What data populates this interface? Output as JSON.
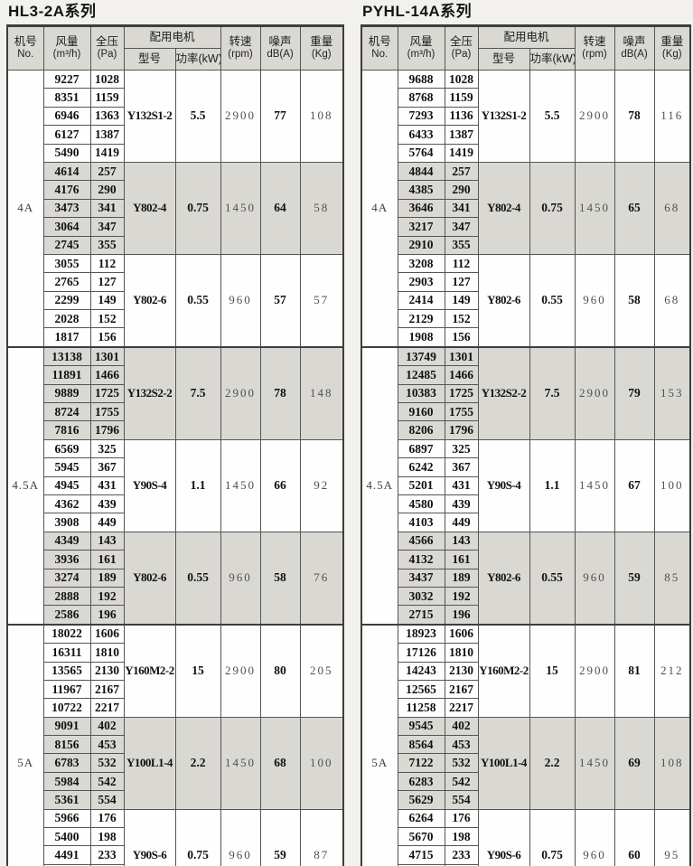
{
  "colors": {
    "page_background": "#f2f1ed",
    "row_shade": "#d9d8d3",
    "header_shade": "#d9d8d3",
    "border": "#555555",
    "cell_white": "#fefefe"
  },
  "header": {
    "machine_no": "机号",
    "machine_no_sub": "No.",
    "airflow": "风量",
    "airflow_sub": "(m³/h)",
    "pressure": "全压",
    "pressure_sub": "(Pa)",
    "motor": "配用电机",
    "motor_model": "型号",
    "motor_power": "功率(kW)",
    "speed": "转速",
    "speed_sub": "(rpm)",
    "noise": "噪声",
    "noise_sub": "dB(A)",
    "weight": "重量",
    "weight_sub": "(Kg)"
  },
  "tables": [
    {
      "title": "HL3-2A系列",
      "sections": [
        {
          "machine_no": "4A",
          "groups": [
            {
              "shaded": false,
              "motor_model": "Y132S1-2",
              "power": "5.5",
              "speed": "2900",
              "noise": "77",
              "weight": "108",
              "rows": [
                {
                  "airflow": "9227",
                  "pressure": "1028"
                },
                {
                  "airflow": "8351",
                  "pressure": "1159"
                },
                {
                  "airflow": "6946",
                  "pressure": "1363"
                },
                {
                  "airflow": "6127",
                  "pressure": "1387"
                },
                {
                  "airflow": "5490",
                  "pressure": "1419"
                }
              ]
            },
            {
              "shaded": true,
              "motor_model": "Y802-4",
              "power": "0.75",
              "speed": "1450",
              "noise": "64",
              "weight": "58",
              "rows": [
                {
                  "airflow": "4614",
                  "pressure": "257"
                },
                {
                  "airflow": "4176",
                  "pressure": "290"
                },
                {
                  "airflow": "3473",
                  "pressure": "341"
                },
                {
                  "airflow": "3064",
                  "pressure": "347"
                },
                {
                  "airflow": "2745",
                  "pressure": "355"
                }
              ]
            },
            {
              "shaded": false,
              "motor_model": "Y802-6",
              "power": "0.55",
              "speed": "960",
              "noise": "57",
              "weight": "57",
              "rows": [
                {
                  "airflow": "3055",
                  "pressure": "112"
                },
                {
                  "airflow": "2765",
                  "pressure": "127"
                },
                {
                  "airflow": "2299",
                  "pressure": "149"
                },
                {
                  "airflow": "2028",
                  "pressure": "152"
                },
                {
                  "airflow": "1817",
                  "pressure": "156"
                }
              ]
            }
          ]
        },
        {
          "machine_no": "4.5A",
          "groups": [
            {
              "shaded": true,
              "motor_model": "Y132S2-2",
              "power": "7.5",
              "speed": "2900",
              "noise": "78",
              "weight": "148",
              "rows": [
                {
                  "airflow": "13138",
                  "pressure": "1301"
                },
                {
                  "airflow": "11891",
                  "pressure": "1466"
                },
                {
                  "airflow": "9889",
                  "pressure": "1725"
                },
                {
                  "airflow": "8724",
                  "pressure": "1755"
                },
                {
                  "airflow": "7816",
                  "pressure": "1796"
                }
              ]
            },
            {
              "shaded": false,
              "motor_model": "Y90S-4",
              "power": "1.1",
              "speed": "1450",
              "noise": "66",
              "weight": "92",
              "rows": [
                {
                  "airflow": "6569",
                  "pressure": "325"
                },
                {
                  "airflow": "5945",
                  "pressure": "367"
                },
                {
                  "airflow": "4945",
                  "pressure": "431"
                },
                {
                  "airflow": "4362",
                  "pressure": "439"
                },
                {
                  "airflow": "3908",
                  "pressure": "449"
                }
              ]
            },
            {
              "shaded": true,
              "motor_model": "Y802-6",
              "power": "0.55",
              "speed": "960",
              "noise": "58",
              "weight": "76",
              "rows": [
                {
                  "airflow": "4349",
                  "pressure": "143"
                },
                {
                  "airflow": "3936",
                  "pressure": "161"
                },
                {
                  "airflow": "3274",
                  "pressure": "189"
                },
                {
                  "airflow": "2888",
                  "pressure": "192"
                },
                {
                  "airflow": "2586",
                  "pressure": "196"
                }
              ]
            }
          ]
        },
        {
          "machine_no": "5A",
          "groups": [
            {
              "shaded": false,
              "motor_model": "Y160M2-2",
              "power": "15",
              "speed": "2900",
              "noise": "80",
              "weight": "205",
              "rows": [
                {
                  "airflow": "18022",
                  "pressure": "1606"
                },
                {
                  "airflow": "16311",
                  "pressure": "1810"
                },
                {
                  "airflow": "13565",
                  "pressure": "2130"
                },
                {
                  "airflow": "11967",
                  "pressure": "2167"
                },
                {
                  "airflow": "10722",
                  "pressure": "2217"
                }
              ]
            },
            {
              "shaded": true,
              "motor_model": "Y100L1-4",
              "power": "2.2",
              "speed": "1450",
              "noise": "68",
              "weight": "100",
              "rows": [
                {
                  "airflow": "9091",
                  "pressure": "402"
                },
                {
                  "airflow": "8156",
                  "pressure": "453"
                },
                {
                  "airflow": "6783",
                  "pressure": "532"
                },
                {
                  "airflow": "5984",
                  "pressure": "542"
                },
                {
                  "airflow": "5361",
                  "pressure": "554"
                }
              ]
            },
            {
              "shaded": false,
              "motor_model": "Y90S-6",
              "power": "0.75",
              "speed": "960",
              "noise": "59",
              "weight": "87",
              "rows": [
                {
                  "airflow": "5966",
                  "pressure": "176"
                },
                {
                  "airflow": "5400",
                  "pressure": "198"
                },
                {
                  "airflow": "4491",
                  "pressure": "233"
                },
                {
                  "airflow": "3962",
                  "pressure": "237"
                },
                {
                  "airflow": "3549",
                  "pressure": "243"
                }
              ]
            }
          ]
        }
      ]
    },
    {
      "title": "PYHL-14A系列",
      "sections": [
        {
          "machine_no": "4A",
          "groups": [
            {
              "shaded": false,
              "motor_model": "Y132S1-2",
              "power": "5.5",
              "speed": "2900",
              "noise": "78",
              "weight": "116",
              "rows": [
                {
                  "airflow": "9688",
                  "pressure": "1028"
                },
                {
                  "airflow": "8768",
                  "pressure": "1159"
                },
                {
                  "airflow": "7293",
                  "pressure": "1136"
                },
                {
                  "airflow": "6433",
                  "pressure": "1387"
                },
                {
                  "airflow": "5764",
                  "pressure": "1419"
                }
              ]
            },
            {
              "shaded": true,
              "motor_model": "Y802-4",
              "power": "0.75",
              "speed": "1450",
              "noise": "65",
              "weight": "68",
              "rows": [
                {
                  "airflow": "4844",
                  "pressure": "257"
                },
                {
                  "airflow": "4385",
                  "pressure": "290"
                },
                {
                  "airflow": "3646",
                  "pressure": "341"
                },
                {
                  "airflow": "3217",
                  "pressure": "347"
                },
                {
                  "airflow": "2910",
                  "pressure": "355"
                }
              ]
            },
            {
              "shaded": false,
              "motor_model": "Y802-6",
              "power": "0.55",
              "speed": "960",
              "noise": "58",
              "weight": "68",
              "rows": [
                {
                  "airflow": "3208",
                  "pressure": "112"
                },
                {
                  "airflow": "2903",
                  "pressure": "127"
                },
                {
                  "airflow": "2414",
                  "pressure": "149"
                },
                {
                  "airflow": "2129",
                  "pressure": "152"
                },
                {
                  "airflow": "1908",
                  "pressure": "156"
                }
              ]
            }
          ]
        },
        {
          "machine_no": "4.5A",
          "groups": [
            {
              "shaded": true,
              "motor_model": "Y132S2-2",
              "power": "7.5",
              "speed": "2900",
              "noise": "79",
              "weight": "153",
              "rows": [
                {
                  "airflow": "13749",
                  "pressure": "1301"
                },
                {
                  "airflow": "12485",
                  "pressure": "1466"
                },
                {
                  "airflow": "10383",
                  "pressure": "1725"
                },
                {
                  "airflow": "9160",
                  "pressure": "1755"
                },
                {
                  "airflow": "8206",
                  "pressure": "1796"
                }
              ]
            },
            {
              "shaded": false,
              "motor_model": "Y90S-4",
              "power": "1.1",
              "speed": "1450",
              "noise": "67",
              "weight": "100",
              "rows": [
                {
                  "airflow": "6897",
                  "pressure": "325"
                },
                {
                  "airflow": "6242",
                  "pressure": "367"
                },
                {
                  "airflow": "5201",
                  "pressure": "431"
                },
                {
                  "airflow": "4580",
                  "pressure": "439"
                },
                {
                  "airflow": "4103",
                  "pressure": "449"
                }
              ]
            },
            {
              "shaded": true,
              "motor_model": "Y802-6",
              "power": "0.55",
              "speed": "960",
              "noise": "59",
              "weight": "85",
              "rows": [
                {
                  "airflow": "4566",
                  "pressure": "143"
                },
                {
                  "airflow": "4132",
                  "pressure": "161"
                },
                {
                  "airflow": "3437",
                  "pressure": "189"
                },
                {
                  "airflow": "3032",
                  "pressure": "192"
                },
                {
                  "airflow": "2715",
                  "pressure": "196"
                }
              ]
            }
          ]
        },
        {
          "machine_no": "5A",
          "groups": [
            {
              "shaded": false,
              "motor_model": "Y160M2-2",
              "power": "15",
              "speed": "2900",
              "noise": "81",
              "weight": "212",
              "rows": [
                {
                  "airflow": "18923",
                  "pressure": "1606"
                },
                {
                  "airflow": "17126",
                  "pressure": "1810"
                },
                {
                  "airflow": "14243",
                  "pressure": "2130"
                },
                {
                  "airflow": "12565",
                  "pressure": "2167"
                },
                {
                  "airflow": "11258",
                  "pressure": "2217"
                }
              ]
            },
            {
              "shaded": true,
              "motor_model": "Y100L1-4",
              "power": "2.2",
              "speed": "1450",
              "noise": "69",
              "weight": "108",
              "rows": [
                {
                  "airflow": "9545",
                  "pressure": "402"
                },
                {
                  "airflow": "8564",
                  "pressure": "453"
                },
                {
                  "airflow": "7122",
                  "pressure": "532"
                },
                {
                  "airflow": "6283",
                  "pressure": "542"
                },
                {
                  "airflow": "5629",
                  "pressure": "554"
                }
              ]
            },
            {
              "shaded": false,
              "motor_model": "Y90S-6",
              "power": "0.75",
              "speed": "960",
              "noise": "60",
              "weight": "95",
              "rows": [
                {
                  "airflow": "6264",
                  "pressure": "176"
                },
                {
                  "airflow": "5670",
                  "pressure": "198"
                },
                {
                  "airflow": "4715",
                  "pressure": "233"
                },
                {
                  "airflow": "4160",
                  "pressure": "237"
                },
                {
                  "airflow": "3726",
                  "pressure": "243"
                }
              ]
            }
          ]
        }
      ]
    }
  ]
}
